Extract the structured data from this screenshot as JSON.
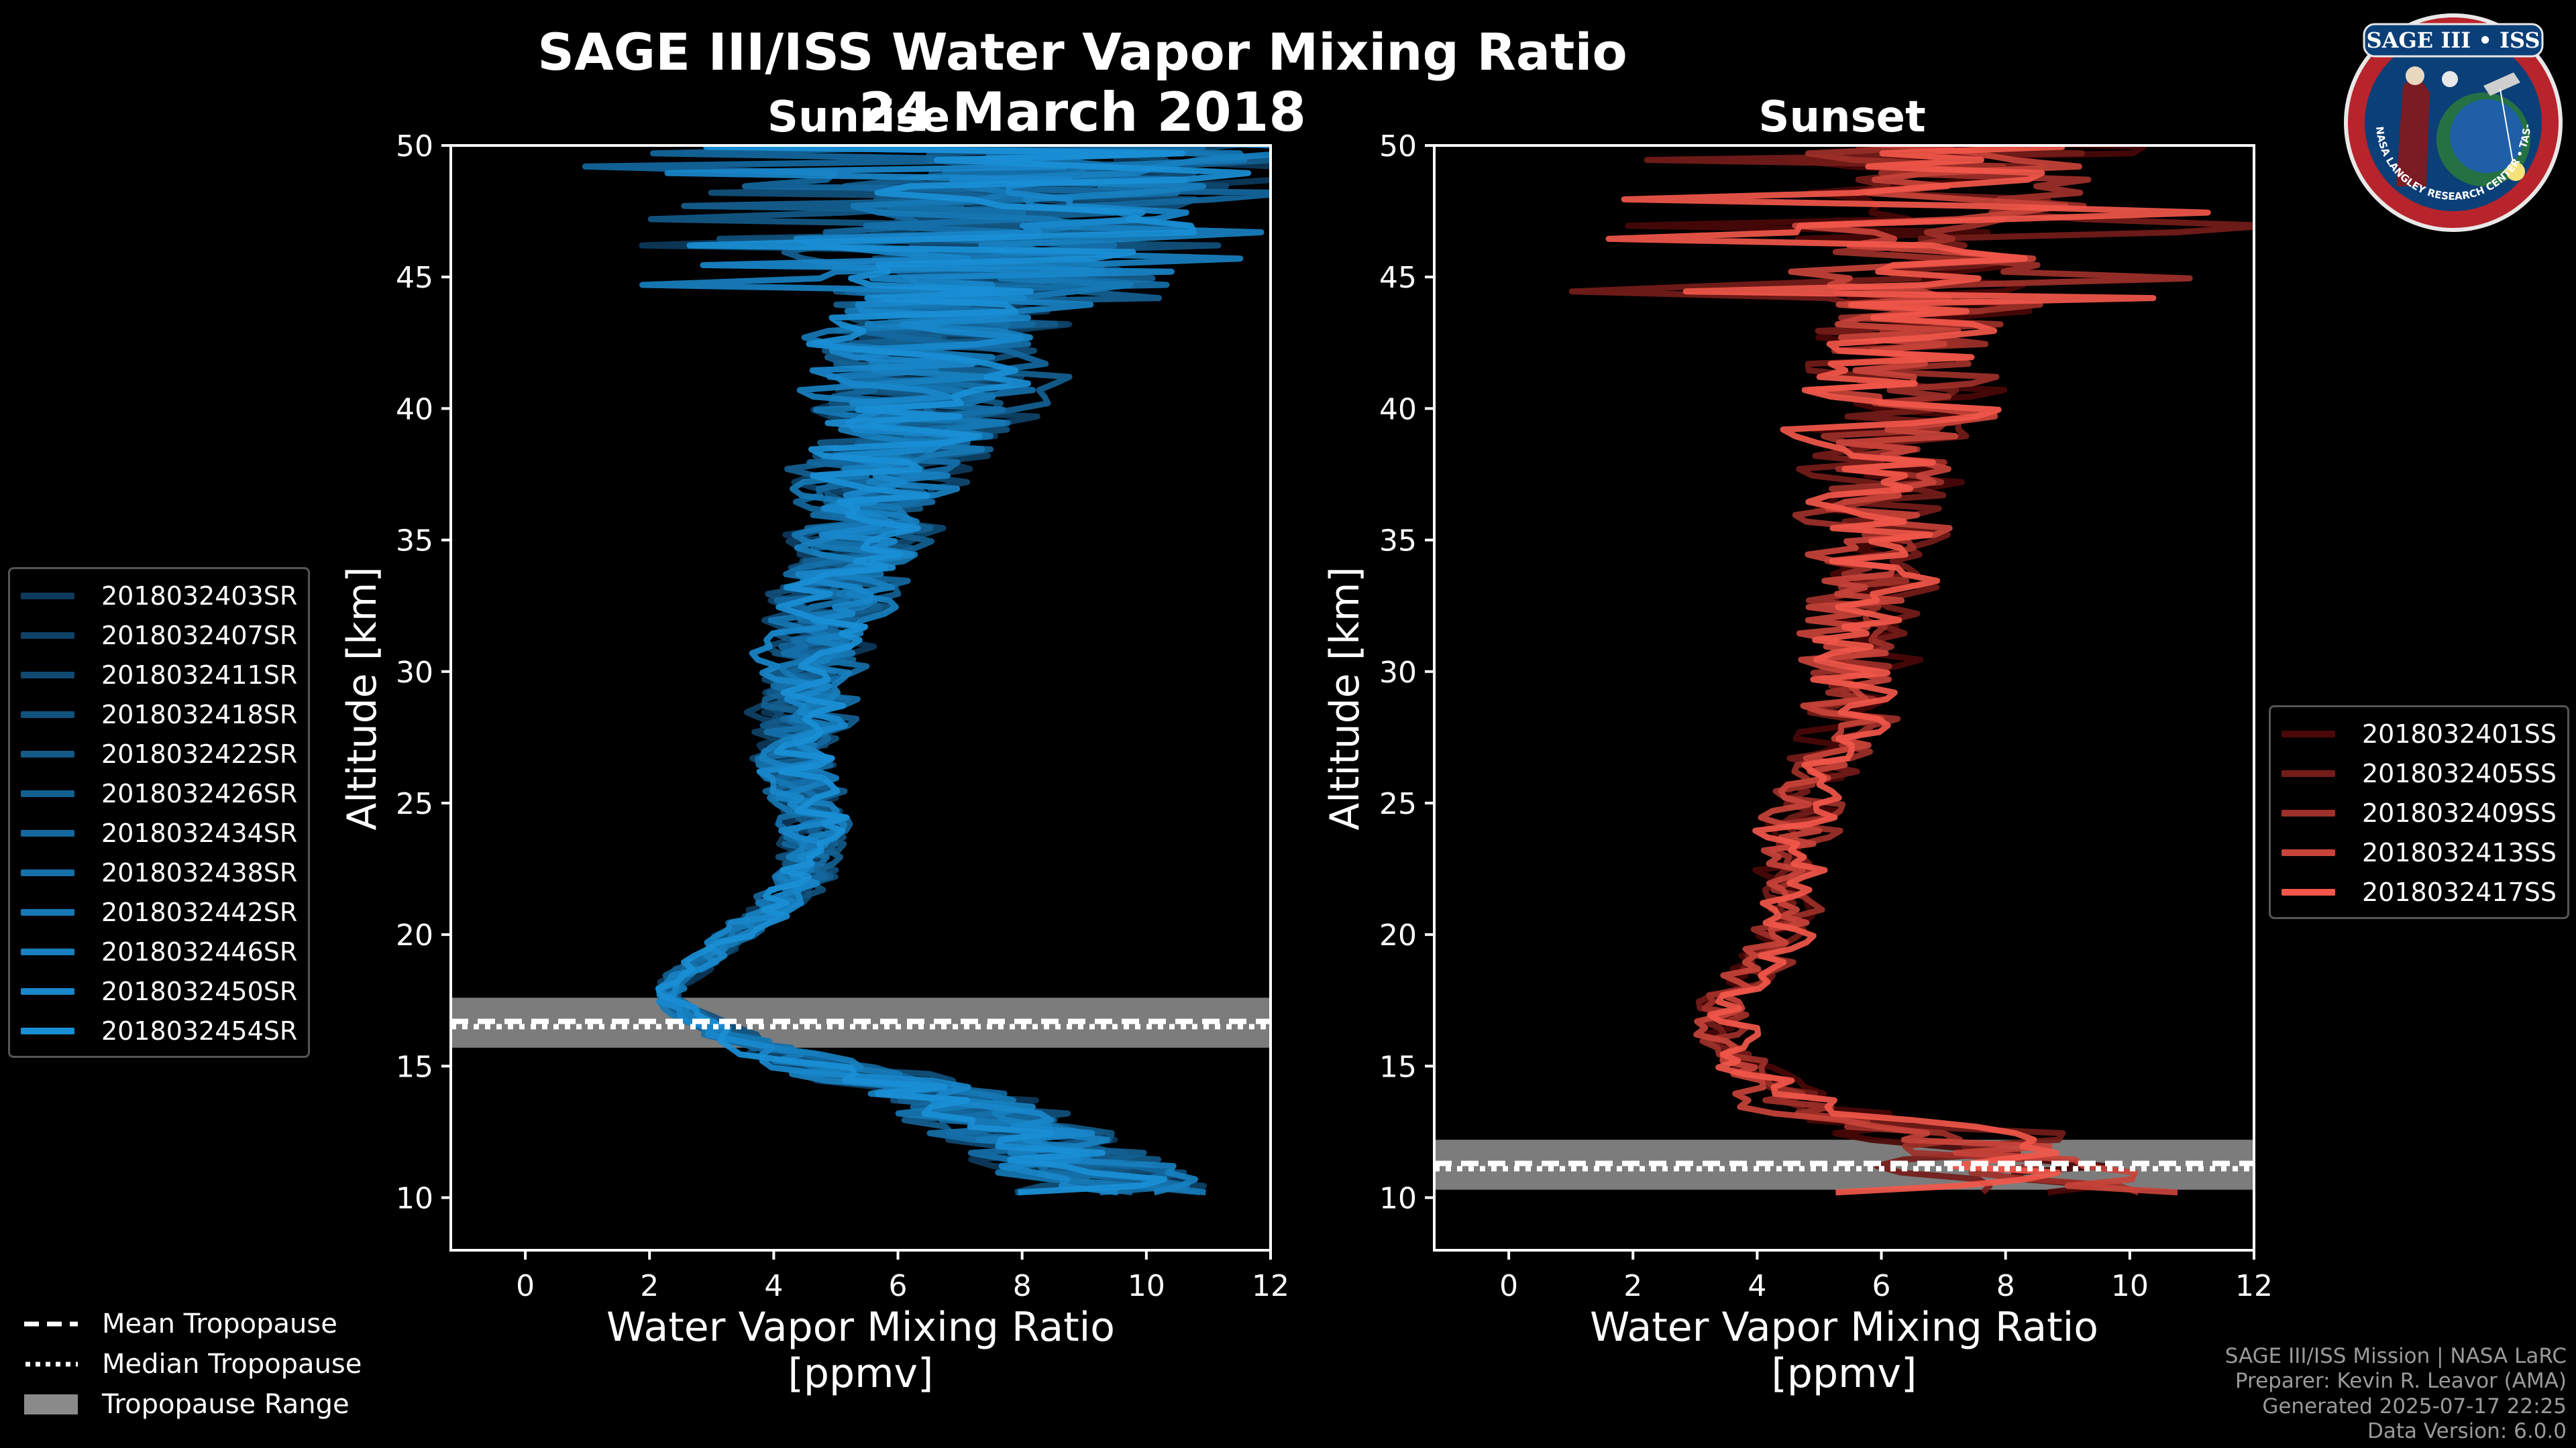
{
  "figure": {
    "title": "SAGE III/ISS Water Vapor Mixing Ratio",
    "date": "24 March 2018",
    "left_panel_title": "Sunrise",
    "right_panel_title": "Sunset",
    "ylabel": "Altitude [km]",
    "xlabel_line1": "Water Vapor Mixing Ratio",
    "xlabel_line2": "[ppmv]"
  },
  "legend_bottom": {
    "mean": "Mean Tropopause",
    "median": "Median Tropopause",
    "range": "Tropopause Range"
  },
  "credits": {
    "line1": "SAGE III/ISS Mission | NASA LaRC",
    "line2": "Preparer: Kevin R. Leavor (AMA)",
    "line3": "Generated 2025-07-17 22:25",
    "line4": "Data Version: 6.0.0"
  },
  "logo": {
    "text": "SAGE III • ISS",
    "ring_text": "BALL • NASA LANGLEY RESEARCH CENTER • TAS-I • ESA"
  },
  "colors": {
    "sunrise_dark": "#0d3a5c",
    "sunrise_light": "#1a8fd6",
    "sunset_dark": "#4a0808",
    "sunset_light": "#f2574a",
    "tropo_band": "#8a8a8a"
  },
  "chart_data": [
    {
      "type": "line",
      "title": "Sunrise",
      "xlabel": "Water Vapor Mixing Ratio [ppmv]",
      "ylabel": "Altitude [km]",
      "xlim": [
        -1.2,
        12
      ],
      "ylim": [
        8,
        50
      ],
      "xticks": [
        0,
        2,
        4,
        6,
        8,
        10,
        12
      ],
      "yticks": [
        10,
        15,
        20,
        25,
        30,
        35,
        40,
        45,
        50
      ],
      "tropopause": {
        "mean": 16.7,
        "median": 16.5,
        "range": [
          15.7,
          17.6
        ]
      },
      "legend_position": "left",
      "profile_shape": {
        "altitude": [
          10.5,
          12.5,
          13.5,
          14.5,
          15.5,
          16.5,
          17.5,
          18.5,
          20,
          22,
          24,
          26,
          28,
          30,
          32,
          34,
          36,
          38,
          40,
          42,
          44,
          46,
          48,
          50
        ],
        "mean_ppmv": [
          9.5,
          8.0,
          7.0,
          5.5,
          3.8,
          2.8,
          2.2,
          2.6,
          3.5,
          4.5,
          4.6,
          4.4,
          4.4,
          4.6,
          4.8,
          5.2,
          5.6,
          5.9,
          6.3,
          6.7,
          7.1,
          7.6,
          8.2,
          9.0
        ],
        "spread_ppmv": [
          2,
          2,
          2,
          1.5,
          1.0,
          0.5,
          0.3,
          0.4,
          0.5,
          0.7,
          0.8,
          0.9,
          1.0,
          1.1,
          1.2,
          1.4,
          1.6,
          2.0,
          2.4,
          2.8,
          3.2,
          3.6,
          4.0,
          4.4
        ]
      },
      "series": [
        {
          "name": "2018032403SR"
        },
        {
          "name": "2018032407SR"
        },
        {
          "name": "2018032411SR"
        },
        {
          "name": "2018032418SR"
        },
        {
          "name": "2018032422SR"
        },
        {
          "name": "2018032426SR"
        },
        {
          "name": "2018032434SR"
        },
        {
          "name": "2018032438SR"
        },
        {
          "name": "2018032442SR"
        },
        {
          "name": "2018032446SR"
        },
        {
          "name": "2018032450SR"
        },
        {
          "name": "2018032454SR"
        }
      ]
    },
    {
      "type": "line",
      "title": "Sunset",
      "xlabel": "Water Vapor Mixing Ratio [ppmv]",
      "ylabel": "Altitude [km]",
      "xlim": [
        -1.2,
        12
      ],
      "ylim": [
        8,
        50
      ],
      "xticks": [
        0,
        2,
        4,
        6,
        8,
        10,
        12
      ],
      "yticks": [
        10,
        15,
        20,
        25,
        30,
        35,
        40,
        45,
        50
      ],
      "tropopause": {
        "mean": 11.3,
        "median": 11.1,
        "range": [
          10.3,
          12.2
        ]
      },
      "legend_position": "right",
      "profile_shape": {
        "altitude": [
          10.0,
          11.0,
          12.5,
          13.5,
          15,
          17,
          19,
          21,
          23,
          25,
          27,
          29,
          31,
          33,
          35,
          37,
          39,
          41,
          43,
          45,
          47,
          49,
          50
        ],
        "mean_ppmv": [
          8.0,
          8.5,
          7.0,
          4.5,
          3.6,
          3.3,
          4.2,
          4.6,
          4.6,
          4.8,
          5.2,
          5.5,
          5.6,
          5.7,
          5.9,
          6.0,
          6.2,
          6.4,
          6.5,
          6.6,
          6.8,
          7.0,
          7.2
        ],
        "spread_ppmv": [
          3,
          3,
          2.5,
          1.2,
          0.6,
          0.8,
          0.6,
          0.7,
          0.8,
          0.9,
          1.0,
          1.2,
          1.3,
          1.5,
          1.7,
          1.9,
          2.1,
          2.4,
          2.6,
          2.8,
          3.2,
          3.6,
          4.0
        ]
      },
      "series": [
        {
          "name": "2018032401SS"
        },
        {
          "name": "2018032405SS"
        },
        {
          "name": "2018032409SS"
        },
        {
          "name": "2018032413SS"
        },
        {
          "name": "2018032417SS"
        }
      ]
    }
  ]
}
